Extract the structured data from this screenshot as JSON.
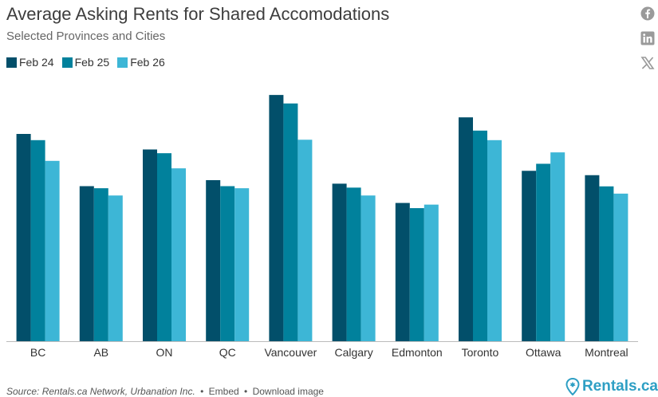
{
  "header": {
    "title": "Average Asking Rents for Shared Accomodations",
    "subtitle": "Selected Provinces and Cities"
  },
  "social": [
    "facebook-icon",
    "linkedin-icon",
    "x-icon"
  ],
  "footer": {
    "source": "Source: Rentals.ca Network, Urbanation Inc.",
    "bullet": "•",
    "embed": "Embed",
    "download": "Download image",
    "brand": "Rentals.ca"
  },
  "colors": {
    "feb24": "#024f6a",
    "feb25": "#01819c",
    "feb26": "#3db6d6",
    "axis": "#bbbbbb",
    "brand": "#2e9fc4"
  },
  "chart_data": {
    "type": "bar",
    "title": "Average Asking Rents for Shared Accomodations",
    "subtitle": "Selected Provinces and Cities",
    "categories": [
      "BC",
      "AB",
      "ON",
      "QC",
      "Vancouver",
      "Calgary",
      "Edmonton",
      "Toronto",
      "Ottawa",
      "Montreal"
    ],
    "series": [
      {
        "name": "Feb 24",
        "values": [
          1000,
          748,
          925,
          777,
          1188,
          760,
          667,
          1080,
          822,
          801
        ]
      },
      {
        "name": "Feb 25",
        "values": [
          970,
          738,
          907,
          748,
          1147,
          741,
          642,
          1016,
          856,
          747
        ]
      },
      {
        "name": "Feb 26",
        "values": [
          870,
          703,
          834,
          738,
          972,
          703,
          659,
          970,
          911,
          712
        ]
      }
    ],
    "ylim": [
      0,
      1200
    ],
    "grid": false,
    "legend": "top-left"
  }
}
